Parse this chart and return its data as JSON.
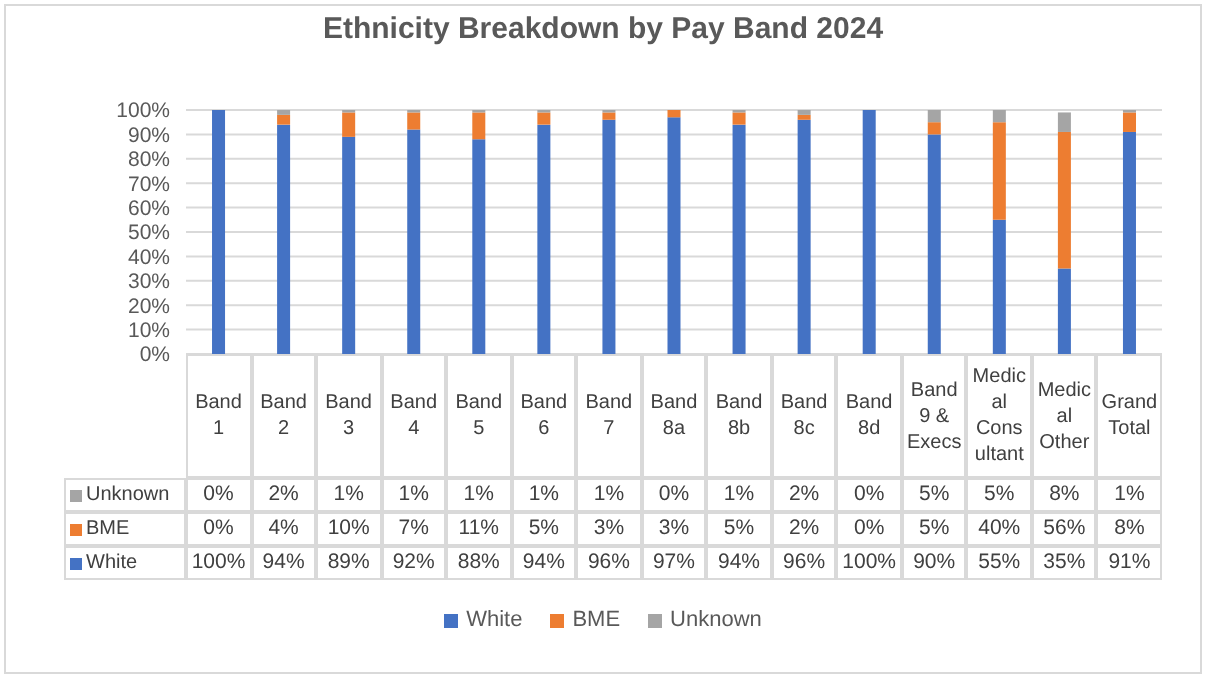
{
  "chart_data": {
    "type": "bar",
    "title": "Ethnicity Breakdown by Pay Band 2024",
    "stacked": true,
    "grid": "y",
    "legend": "bottom",
    "categories": [
      "Band 1",
      "Band 2",
      "Band 3",
      "Band 4",
      "Band 5",
      "Band 6",
      "Band 7",
      "Band 8a",
      "Band 8b",
      "Band 8c",
      "Band 8d",
      "Band 9 & Execs",
      "Medical Consultant",
      "Medical Other",
      "Grand Total"
    ],
    "ylim": [
      0,
      100
    ],
    "yticks": [
      {
        "value": 0,
        "label": "0%"
      },
      {
        "value": 10,
        "label": "10%"
      },
      {
        "value": 20,
        "label": "20%"
      },
      {
        "value": 30,
        "label": "30%"
      },
      {
        "value": 40,
        "label": "40%"
      },
      {
        "value": 50,
        "label": "50%"
      },
      {
        "value": 60,
        "label": "60%"
      },
      {
        "value": 70,
        "label": "70%"
      },
      {
        "value": 80,
        "label": "80%"
      },
      {
        "value": 90,
        "label": "90%"
      },
      {
        "value": 100,
        "label": "100%"
      }
    ],
    "series": [
      {
        "name": "White",
        "color": "#4472c4",
        "values": [
          100,
          94,
          89,
          92,
          88,
          94,
          96,
          97,
          94,
          96,
          100,
          90,
          55,
          35,
          91
        ],
        "value_labels": [
          "100%",
          "94%",
          "89%",
          "92%",
          "88%",
          "94%",
          "96%",
          "97%",
          "94%",
          "96%",
          "100%",
          "90%",
          "55%",
          "35%",
          "91%"
        ]
      },
      {
        "name": "BME",
        "color": "#ed7d31",
        "values": [
          0,
          4,
          10,
          7,
          11,
          5,
          3,
          3,
          5,
          2,
          0,
          5,
          40,
          56,
          8
        ],
        "value_labels": [
          "0%",
          "4%",
          "10%",
          "7%",
          "11%",
          "5%",
          "3%",
          "3%",
          "5%",
          "2%",
          "0%",
          "5%",
          "40%",
          "56%",
          "8%"
        ]
      },
      {
        "name": "Unknown",
        "color": "#a5a5a5",
        "values": [
          0,
          2,
          1,
          1,
          1,
          1,
          1,
          0,
          1,
          2,
          0,
          5,
          5,
          8,
          1
        ],
        "value_labels": [
          "0%",
          "2%",
          "1%",
          "1%",
          "1%",
          "1%",
          "1%",
          "0%",
          "1%",
          "2%",
          "0%",
          "5%",
          "5%",
          "8%",
          "1%"
        ]
      }
    ]
  }
}
